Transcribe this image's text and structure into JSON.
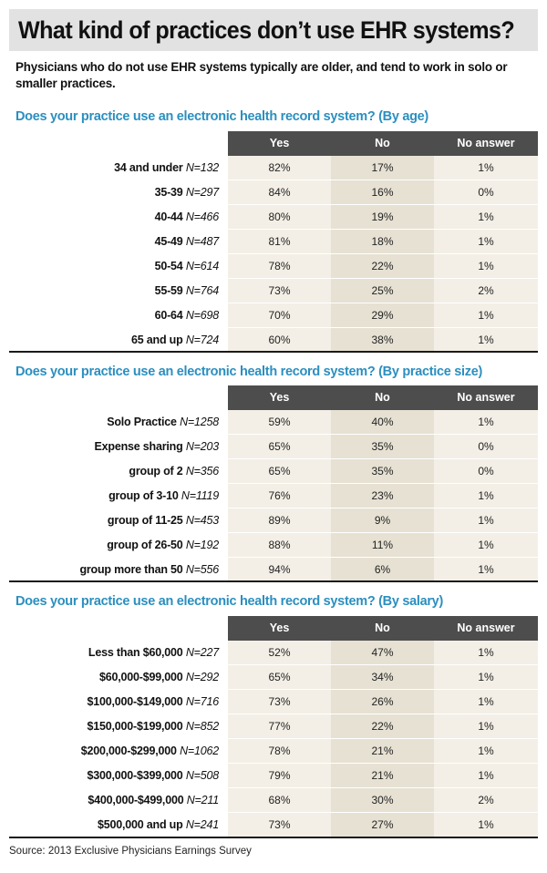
{
  "title": "What kind of practices don’t use EHR systems?",
  "subtitle": "Physicians who do not use EHR systems typically are older, and tend to work in solo or smaller practices.",
  "source": "Source: 2013 Exclusive Physicians Earnings Survey",
  "colors": {
    "heading_blue": "#2b8fbf",
    "header_dark": "#4d4d4d",
    "cell_light": "#f3efe6",
    "cell_mid": "#e6e1d3",
    "title_bg": "#e2e2e2"
  },
  "chart_data": [
    {
      "type": "table",
      "title": "Does your practice use an electronic health record system? (By age)",
      "columns": [
        "Yes",
        "No",
        "No answer"
      ],
      "rows": [
        {
          "label": "34 and under",
          "n": "N=132",
          "values": [
            "82%",
            "17%",
            "1%"
          ]
        },
        {
          "label": "35-39",
          "n": "N=297",
          "values": [
            "84%",
            "16%",
            "0%"
          ]
        },
        {
          "label": "40-44",
          "n": "N=466",
          "values": [
            "80%",
            "19%",
            "1%"
          ]
        },
        {
          "label": "45-49",
          "n": "N=487",
          "values": [
            "81%",
            "18%",
            "1%"
          ]
        },
        {
          "label": "50-54",
          "n": "N=614",
          "values": [
            "78%",
            "22%",
            "1%"
          ]
        },
        {
          "label": "55-59",
          "n": "N=764",
          "values": [
            "73%",
            "25%",
            "2%"
          ]
        },
        {
          "label": "60-64",
          "n": "N=698",
          "values": [
            "70%",
            "29%",
            "1%"
          ]
        },
        {
          "label": "65 and up",
          "n": "N=724",
          "values": [
            "60%",
            "38%",
            "1%"
          ]
        }
      ]
    },
    {
      "type": "table",
      "title": "Does your practice use an electronic health record system? (By practice size)",
      "columns": [
        "Yes",
        "No",
        "No answer"
      ],
      "rows": [
        {
          "label": "Solo Practice",
          "n": "N=1258",
          "values": [
            "59%",
            "40%",
            "1%"
          ]
        },
        {
          "label": "Expense sharing",
          "n": "N=203",
          "values": [
            "65%",
            "35%",
            "0%"
          ]
        },
        {
          "label": "group of 2",
          "n": "N=356",
          "values": [
            "65%",
            "35%",
            "0%"
          ]
        },
        {
          "label": "group of 3-10",
          "n": "N=1119",
          "values": [
            "76%",
            "23%",
            "1%"
          ]
        },
        {
          "label": "group of 11-25",
          "n": "N=453",
          "values": [
            "89%",
            "9%",
            "1%"
          ]
        },
        {
          "label": "group of 26-50",
          "n": "N=192",
          "values": [
            "88%",
            "11%",
            "1%"
          ]
        },
        {
          "label": "group more than 50",
          "n": "N=556",
          "values": [
            "94%",
            "6%",
            "1%"
          ]
        }
      ]
    },
    {
      "type": "table",
      "title": "Does your practice use an electronic health record system? (By salary)",
      "columns": [
        "Yes",
        "No",
        "No answer"
      ],
      "rows": [
        {
          "label": "Less than $60,000",
          "n": "N=227",
          "values": [
            "52%",
            "47%",
            "1%"
          ]
        },
        {
          "label": "$60,000-$99,000",
          "n": "N=292",
          "values": [
            "65%",
            "34%",
            "1%"
          ]
        },
        {
          "label": "$100,000-$149,000",
          "n": "N=716",
          "values": [
            "73%",
            "26%",
            "1%"
          ]
        },
        {
          "label": "$150,000-$199,000",
          "n": "N=852",
          "values": [
            "77%",
            "22%",
            "1%"
          ]
        },
        {
          "label": "$200,000-$299,000",
          "n": "N=1062",
          "values": [
            "78%",
            "21%",
            "1%"
          ]
        },
        {
          "label": "$300,000-$399,000",
          "n": "N=508",
          "values": [
            "79%",
            "21%",
            "1%"
          ]
        },
        {
          "label": "$400,000-$499,000",
          "n": "N=211",
          "values": [
            "68%",
            "30%",
            "2%"
          ]
        },
        {
          "label": "$500,000 and up",
          "n": "N=241",
          "values": [
            "73%",
            "27%",
            "1%"
          ]
        }
      ]
    }
  ]
}
